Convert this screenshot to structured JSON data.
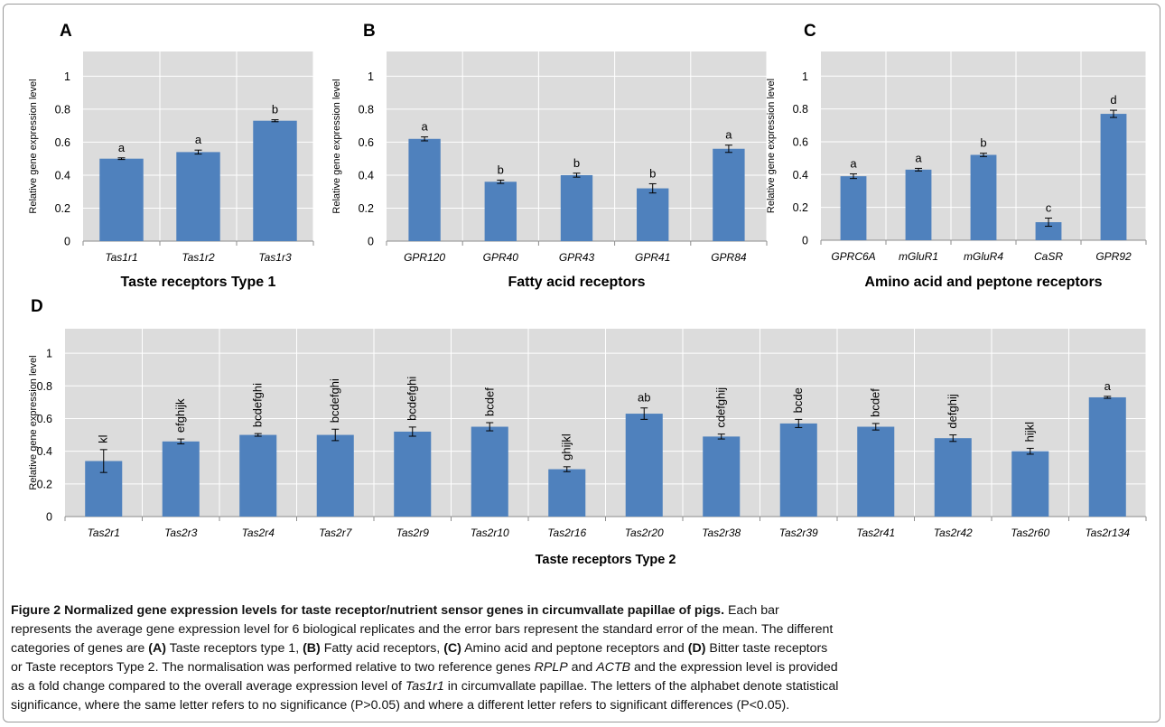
{
  "chart_data": [
    {
      "type": "bar",
      "panel": "A",
      "xlabel": "Taste receptors Type 1",
      "ylabel": "Relative gene expression level",
      "ylim": [
        0,
        1.15
      ],
      "yticks": [
        "0",
        "0.2",
        "0.4",
        "0.6",
        "0.8",
        "1"
      ],
      "categories": [
        "Tas1r1",
        "Tas1r2",
        "Tas1r3"
      ],
      "values": [
        0.5,
        0.54,
        0.73
      ],
      "errors": [
        0.005,
        0.012,
        0.006
      ],
      "significance": [
        "a",
        "a",
        "b"
      ],
      "grid": true,
      "color": "#4f81bd"
    },
    {
      "type": "bar",
      "panel": "B",
      "xlabel": "Fatty acid receptors",
      "ylabel": "Relative gene expression level",
      "ylim": [
        0,
        1.15
      ],
      "yticks": [
        "0",
        "0.2",
        "0.4",
        "0.6",
        "0.8",
        "1"
      ],
      "categories": [
        "GPR120",
        "GPR40",
        "GPR43",
        "GPR41",
        "GPR84"
      ],
      "values": [
        0.62,
        0.36,
        0.4,
        0.32,
        0.56
      ],
      "errors": [
        0.012,
        0.01,
        0.012,
        0.028,
        0.022
      ],
      "significance": [
        "a",
        "b",
        "b",
        "b",
        "a"
      ],
      "grid": true,
      "color": "#4f81bd"
    },
    {
      "type": "bar",
      "panel": "C",
      "xlabel": "Amino acid and peptone receptors",
      "ylabel": "Relative gene expression level",
      "ylim": [
        0,
        1.15
      ],
      "yticks": [
        "0",
        "0.2",
        "0.4",
        "0.6",
        "0.8",
        "1"
      ],
      "categories": [
        "GPRC6A",
        "mGluR1",
        "mGluR4",
        "CaSR",
        "GPR92"
      ],
      "values": [
        0.39,
        0.43,
        0.52,
        0.11,
        0.77
      ],
      "errors": [
        0.014,
        0.008,
        0.01,
        0.025,
        0.022
      ],
      "significance": [
        "a",
        "a",
        "b",
        "c",
        "d"
      ],
      "grid": true,
      "color": "#4f81bd"
    },
    {
      "type": "bar",
      "panel": "D",
      "xlabel": "Taste receptors Type 2",
      "ylabel": "Relative gene expression level",
      "ylim": [
        0,
        1.15
      ],
      "yticks": [
        "0",
        "0.2",
        "0.4",
        "0.6",
        "0.8",
        "1"
      ],
      "categories": [
        "Tas2r1",
        "Tas2r3",
        "Tas2r4",
        "Tas2r7",
        "Tas2r9",
        "Tas2r10",
        "Tas2r16",
        "Tas2r20",
        "Tas2r38",
        "Tas2r39",
        "Tas2r41",
        "Tas2r42",
        "Tas2r60",
        "Tas2r134"
      ],
      "values": [
        0.34,
        0.46,
        0.5,
        0.5,
        0.52,
        0.55,
        0.29,
        0.63,
        0.49,
        0.57,
        0.55,
        0.48,
        0.4,
        0.73
      ],
      "errors": [
        0.07,
        0.015,
        0.008,
        0.035,
        0.028,
        0.025,
        0.015,
        0.035,
        0.015,
        0.025,
        0.02,
        0.02,
        0.018,
        0.006
      ],
      "significance": [
        "kl",
        "efghijk",
        "bcdefghi",
        "bcdefghi",
        "bcdefghi",
        "bcdef",
        "ghijkl",
        "ab",
        "cdefghij",
        "bcde",
        "bcdef",
        "defghij",
        "hijkl",
        "a"
      ],
      "significance_rotated": [
        true,
        true,
        true,
        true,
        true,
        true,
        true,
        false,
        true,
        true,
        true,
        true,
        true,
        false
      ],
      "grid": true,
      "color": "#4f81bd"
    }
  ],
  "caption": {
    "title": "Figure 2 Normalized gene expression levels for taste receptor/nutrient sensor genes in circumvallate papillae of pigs.",
    "lines": [
      [
        {
          "t": " Each bar"
        }
      ],
      [
        {
          "t": "represents the average gene expression level for 6 biological replicates and the error bars represent the standard error of the mean. The different"
        }
      ],
      [
        {
          "t": "categories of genes are "
        },
        {
          "t": "(A)",
          "b": true
        },
        {
          "t": " Taste receptors type 1, "
        },
        {
          "t": "(B)",
          "b": true
        },
        {
          "t": " Fatty acid receptors, "
        },
        {
          "t": "(C)",
          "b": true
        },
        {
          "t": " Amino acid and peptone receptors and "
        },
        {
          "t": "(D)",
          "b": true
        },
        {
          "t": " Bitter taste receptors"
        }
      ],
      [
        {
          "t": "or Taste receptors Type 2. The normalisation was performed relative to two reference genes "
        },
        {
          "t": "RPLP",
          "i": true
        },
        {
          "t": " and "
        },
        {
          "t": "ACTB",
          "i": true
        },
        {
          "t": " and the expression level is provided"
        }
      ],
      [
        {
          "t": "as a fold change compared to the overall average expression level of "
        },
        {
          "t": "Tas1r1",
          "i": true
        },
        {
          "t": " in circumvallate papillae. The letters of the alphabet denote statistical"
        }
      ],
      [
        {
          "t": "significance, where the same letter refers to no significance (P>0.05) and where a different letter refers to significant differences (P<0.05)."
        }
      ]
    ]
  }
}
